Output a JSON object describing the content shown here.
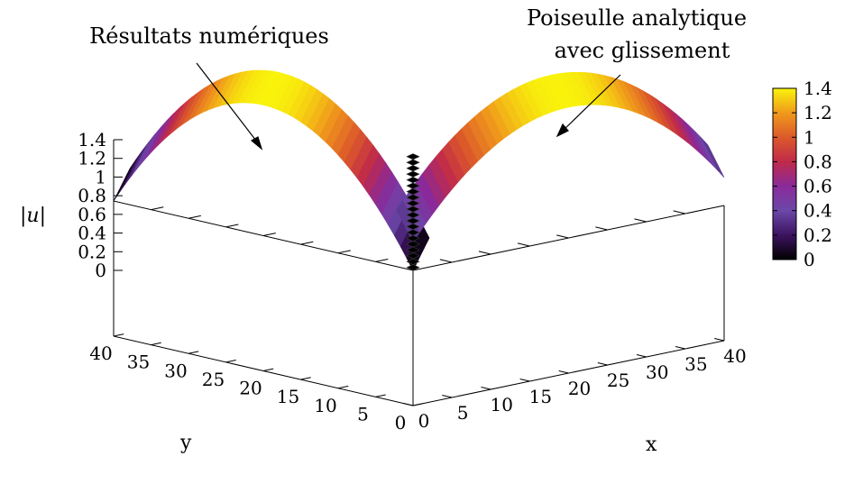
{
  "chart_data": {
    "type": "surface",
    "annotations": {
      "left": "Résultats numériques",
      "right_line1": "Poiseulle analytique",
      "right_line2": "avec glissement"
    },
    "zlabel": "|u|",
    "xlabel": "x",
    "ylabel": "y",
    "xlim": [
      0,
      40
    ],
    "ylim": [
      0,
      40
    ],
    "zlim": [
      0,
      1.4
    ],
    "x_ticks": [
      "0",
      "5",
      "10",
      "15",
      "20",
      "25",
      "30",
      "35",
      "40"
    ],
    "y_ticks": [
      "0",
      "5",
      "10",
      "15",
      "20",
      "25",
      "30",
      "35",
      "40"
    ],
    "z_ticks": [
      "0",
      "0.2",
      "0.4",
      "0.6",
      "0.8",
      "1",
      "1.2",
      "1.4"
    ],
    "colorbar": {
      "range": [
        0,
        1.4
      ],
      "ticks": [
        "0",
        "0.2",
        "0.4",
        "0.6",
        "0.8",
        "1",
        "1.2",
        "1.4"
      ],
      "stops": [
        "#000000",
        "#3d1360",
        "#6b48a8",
        "#8a2a9a",
        "#c02a4a",
        "#dc5a2a",
        "#f09a1c",
        "#f9f30c"
      ]
    },
    "series": [
      {
        "name": "Résultats numériques",
        "region": "y in [0,40], numerical solution",
        "peak": 1.4,
        "min": 0.0
      },
      {
        "name": "Poiseulle analytique avec glissement",
        "region": "x in [0,40], analytic Poiseuille profile with slip",
        "peak": 1.4,
        "min": 0.3
      }
    ],
    "grid": false
  }
}
